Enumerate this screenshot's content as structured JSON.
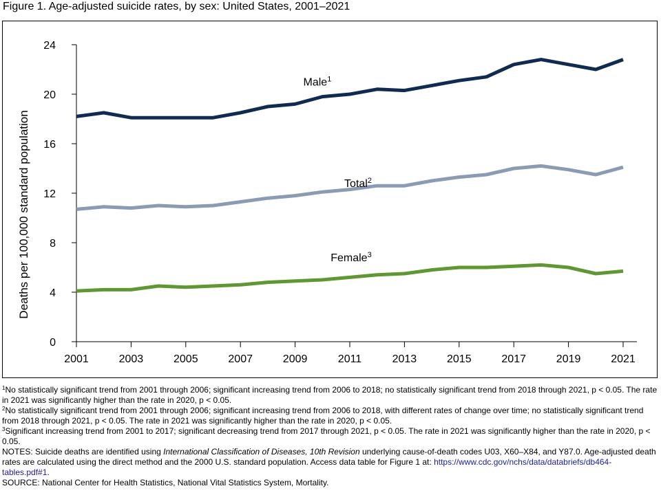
{
  "figure": {
    "title": "Figure 1. Age-adjusted suicide rates, by sex: United States, 2001–2021"
  },
  "chart_data": {
    "type": "line",
    "title": "Figure 1. Age-adjusted suicide rates, by sex: United States, 2001–2021",
    "xlabel": "",
    "ylabel": "Deaths per 100,000 standard population",
    "x": [
      2001,
      2002,
      2003,
      2004,
      2005,
      2006,
      2007,
      2008,
      2009,
      2010,
      2011,
      2012,
      2013,
      2014,
      2015,
      2016,
      2017,
      2018,
      2019,
      2020,
      2021
    ],
    "xlim": [
      2001,
      2021
    ],
    "ylim": [
      0,
      24
    ],
    "x_ticks": [
      "2001",
      "2003",
      "2005",
      "2007",
      "2009",
      "2011",
      "2013",
      "2015",
      "2017",
      "2019",
      "2021"
    ],
    "x_tick_values": [
      2001,
      2003,
      2005,
      2007,
      2009,
      2011,
      2013,
      2015,
      2017,
      2019,
      2021
    ],
    "y_ticks": [
      "0",
      "4",
      "8",
      "12",
      "16",
      "20",
      "24"
    ],
    "y_tick_values": [
      0,
      4,
      8,
      12,
      16,
      20,
      24
    ],
    "grid": false,
    "series": [
      {
        "name": "Male",
        "sup": "1",
        "color": "#0f2b52",
        "values": [
          18.2,
          18.5,
          18.1,
          18.1,
          18.1,
          18.1,
          18.5,
          19.0,
          19.2,
          19.8,
          20.0,
          20.4,
          20.3,
          20.7,
          21.1,
          21.4,
          22.4,
          22.8,
          22.4,
          22.0,
          22.8
        ]
      },
      {
        "name": "Total",
        "sup": "2",
        "color": "#8a9bb5",
        "values": [
          10.7,
          10.9,
          10.8,
          11.0,
          10.9,
          11.0,
          11.3,
          11.6,
          11.8,
          12.1,
          12.3,
          12.6,
          12.6,
          13.0,
          13.3,
          13.5,
          14.0,
          14.2,
          13.9,
          13.5,
          14.1
        ]
      },
      {
        "name": "Female",
        "sup": "3",
        "color": "#5f9830",
        "values": [
          4.1,
          4.2,
          4.2,
          4.5,
          4.4,
          4.5,
          4.6,
          4.8,
          4.9,
          5.0,
          5.2,
          5.4,
          5.5,
          5.8,
          6.0,
          6.0,
          6.1,
          6.2,
          6.0,
          5.5,
          5.7
        ]
      }
    ]
  },
  "footnotes": [
    {
      "sup": "1",
      "text": "No statistically significant trend from 2001 through 2006; significant increasing trend from 2006 to 2018; no statistically significant trend from 2018 through 2021, p < 0.05. The rate in 2021 was significantly higher than the rate in 2020, p < 0.05."
    },
    {
      "sup": "2",
      "text": "No statistically significant trend from 2001 through 2006; significant increasing trend from 2006 to 2018, with different rates of change over time; no statistically significant trend from 2018 through 2021, p < 0.05. The rate in 2021 was significantly higher than the rate in 2020, p < 0.05."
    },
    {
      "sup": "3",
      "text": "Significant increasing trend from 2001 to 2017; significant decreasing trend from 2017 through 2021, p < 0.05. The rate in 2021 was significantly higher than the rate in 2020, p < 0.05."
    }
  ],
  "notes": {
    "label": "NOTES:",
    "text_1": " Suicide deaths are identified using ",
    "icd": "International Classification of Diseases, 10th Revision",
    "text_2": " underlying cause-of-death codes U03, X60–X84, and Y87.0. Age-adjusted death rates are calculated using the direct method and the 2000 U.S. standard population. Access data table for Figure 1 at: ",
    "link": "https://www.cdc.gov/nchs/data/databriefs/db464-tables.pdf#1",
    "text_3": "."
  },
  "source": "SOURCE: National Center for Health Statistics, National Vital Statistics System, Mortality."
}
